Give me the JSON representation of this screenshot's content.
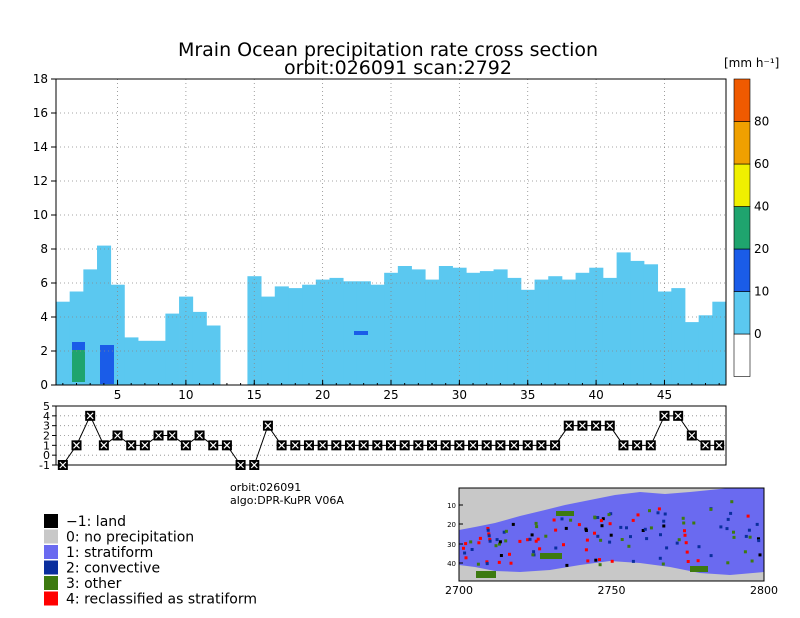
{
  "header": {
    "title_line1": "Mrain Ocean precipitation rate cross section",
    "title_line2": "orbit:026091     scan:2792"
  },
  "info": {
    "orbit": "orbit:026091",
    "algo": "algo:DPR-KuPR V06A"
  },
  "chart_data": [
    {
      "type": "bar",
      "title": "Mrain Ocean precipitation rate cross section",
      "subtitle": "orbit:026091     scan:2792",
      "x": [
        1,
        2,
        3,
        4,
        5,
        6,
        7,
        8,
        9,
        10,
        11,
        12,
        13,
        14,
        15,
        16,
        17,
        18,
        19,
        20,
        21,
        22,
        23,
        24,
        25,
        26,
        27,
        28,
        29,
        30,
        31,
        32,
        33,
        34,
        35,
        36,
        37,
        38,
        39,
        40,
        41,
        42,
        43,
        44,
        45,
        46,
        47,
        48,
        49
      ],
      "xticks": [
        5,
        10,
        15,
        20,
        25,
        30,
        35,
        40,
        45
      ],
      "xlim": [
        0.5,
        49.5
      ],
      "ylim": [
        0,
        18
      ],
      "yticks": [
        0,
        2,
        4,
        6,
        8,
        10,
        12,
        14,
        16,
        18
      ],
      "grid": true,
      "heights": [
        4.9,
        5.5,
        6.8,
        8.2,
        5.9,
        2.8,
        2.6,
        2.6,
        4.2,
        5.2,
        4.3,
        3.5,
        0,
        0,
        6.4,
        5.2,
        5.8,
        5.7,
        5.9,
        6.2,
        6.3,
        6.1,
        6.1,
        5.9,
        6.6,
        7.0,
        6.8,
        6.2,
        7.0,
        6.9,
        6.6,
        6.7,
        6.8,
        6.3,
        5.6,
        6.2,
        6.4,
        6.2,
        6.6,
        6.9,
        6.3,
        7.8,
        7.3,
        7.1,
        5.5,
        5.7,
        3.7,
        4.1,
        4.9
      ],
      "bottoms": [
        0,
        0,
        0,
        0,
        0,
        0,
        0,
        0,
        0,
        0,
        0,
        0,
        0,
        0,
        0,
        0,
        0,
        0,
        0,
        0,
        0,
        0,
        0,
        0,
        0,
        0,
        0,
        0,
        0,
        0,
        0,
        0,
        0,
        0,
        0,
        0,
        0,
        0,
        0,
        0,
        0,
        0,
        0,
        0,
        0,
        0,
        0,
        0,
        0
      ],
      "colorbar": {
        "unit": "[mm h⁻¹]",
        "labels": [
          "0",
          "10",
          "20",
          "40",
          "60",
          "80"
        ],
        "colors": [
          "#ffffff",
          "#5bc8f0",
          "#1a5ce8",
          "#1fa46e",
          "#f0f000",
          "#f0a000",
          "#f05a00"
        ]
      }
    },
    {
      "type": "line",
      "xlim": [
        0.5,
        49.5
      ],
      "ylim": [
        -1,
        5
      ],
      "yticks": [
        "-1",
        "0",
        "1",
        "2",
        "3",
        "4",
        "5"
      ],
      "values": [
        -1,
        1,
        4,
        1,
        2,
        1,
        1,
        2,
        2,
        1,
        2,
        1,
        1,
        -1,
        -1,
        3,
        1,
        1,
        1,
        1,
        1,
        1,
        1,
        1,
        1,
        1,
        1,
        1,
        1,
        1,
        1,
        1,
        1,
        1,
        1,
        1,
        1,
        3,
        3,
        3,
        3,
        1,
        1,
        1,
        4,
        4,
        2,
        1,
        1
      ]
    }
  ],
  "map": {
    "xticks": [
      "2700",
      "2750",
      "2800"
    ],
    "yticks": [
      "10",
      "20",
      "30",
      "40"
    ]
  },
  "legend": {
    "items": [
      {
        "label": "−1: land",
        "color": "#000000"
      },
      {
        "label": "0: no precipitation",
        "color": "#c8c8c8"
      },
      {
        "label": "1: stratiform",
        "color": "#6a6af0"
      },
      {
        "label": "2: convective",
        "color": "#0a2e9e"
      },
      {
        "label": "3: other",
        "color": "#3d7a10"
      },
      {
        "label": "4: reclassified as stratiform",
        "color": "#ff0000"
      }
    ]
  }
}
